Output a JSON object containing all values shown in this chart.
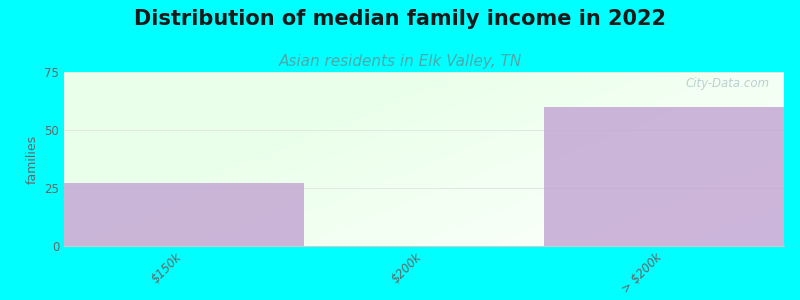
{
  "title": "Distribution of median family income in 2022",
  "subtitle": "Asian residents in Elk Valley, TN",
  "categories": [
    "$150k",
    "$200k",
    "> $200k"
  ],
  "values": [
    27,
    0,
    60
  ],
  "bar_color": "#c4a8d4",
  "bg_color": "#00ffff",
  "ylabel": "families",
  "ylim": [
    0,
    75
  ],
  "yticks": [
    0,
    25,
    50,
    75
  ],
  "title_fontsize": 15,
  "subtitle_fontsize": 11,
  "subtitle_color": "#4aaaaa",
  "watermark": "City-Data.com",
  "watermark_color": "#b0c8cc",
  "tick_color": "#666666",
  "grid_color": "#e0e8e0",
  "spine_color": "#cccccc"
}
